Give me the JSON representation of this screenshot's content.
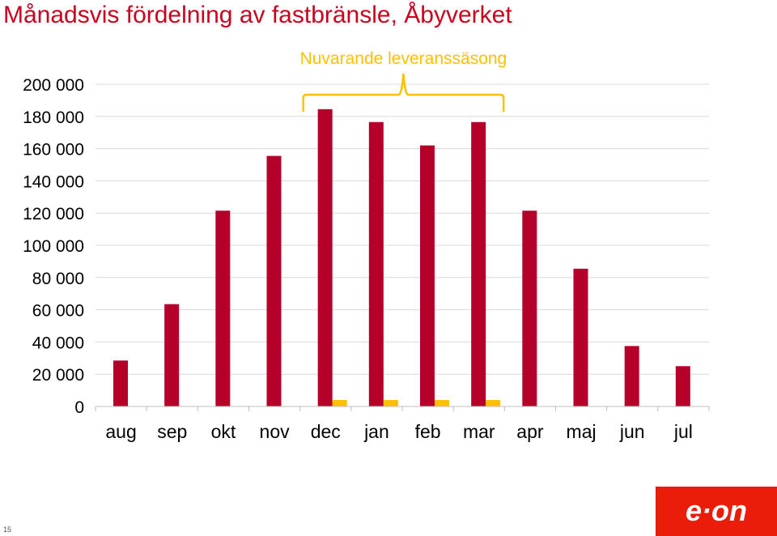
{
  "title": "Månadsvis fördelning av fastbränsle, Åbyverket",
  "slide_number": "15",
  "logo_text": "e·on",
  "colors": {
    "primary_bar": "#b5002a",
    "secondary_bar": "#ffc000",
    "title": "#c8001e",
    "season_annotation": "#ffc000",
    "logo_background": "#ea1c0a"
  },
  "chart_data": {
    "type": "bar",
    "title": "Månadsvis fördelning av fastbränsle, Åbyverket",
    "xlabel": "",
    "ylabel": "",
    "categories": [
      "aug",
      "sep",
      "okt",
      "nov",
      "dec",
      "jan",
      "feb",
      "mar",
      "apr",
      "maj",
      "jun",
      "jul"
    ],
    "series": [
      {
        "values": [
          28500,
          63500,
          121500,
          155500,
          184500,
          176500,
          162000,
          176500,
          121500,
          85500,
          37500,
          25000
        ]
      },
      {
        "values": [
          0,
          0,
          0,
          0,
          4000,
          4000,
          4000,
          4000,
          0,
          0,
          0,
          0
        ]
      }
    ],
    "ylim": [
      0,
      200000
    ],
    "y_ticks": [
      0,
      20000,
      40000,
      60000,
      80000,
      100000,
      120000,
      140000,
      160000,
      180000,
      200000
    ],
    "y_tick_labels": [
      "0",
      "20 000",
      "40 000",
      "60 000",
      "80 000",
      "100 000",
      "120 000",
      "140 000",
      "160 000",
      "180 000",
      "200 000"
    ],
    "grid": true,
    "legend": "none",
    "annotations": [
      {
        "text": "Nuvarande leveranssäsong",
        "from_category": "dec",
        "to_category": "mar",
        "style": "brace"
      }
    ]
  }
}
